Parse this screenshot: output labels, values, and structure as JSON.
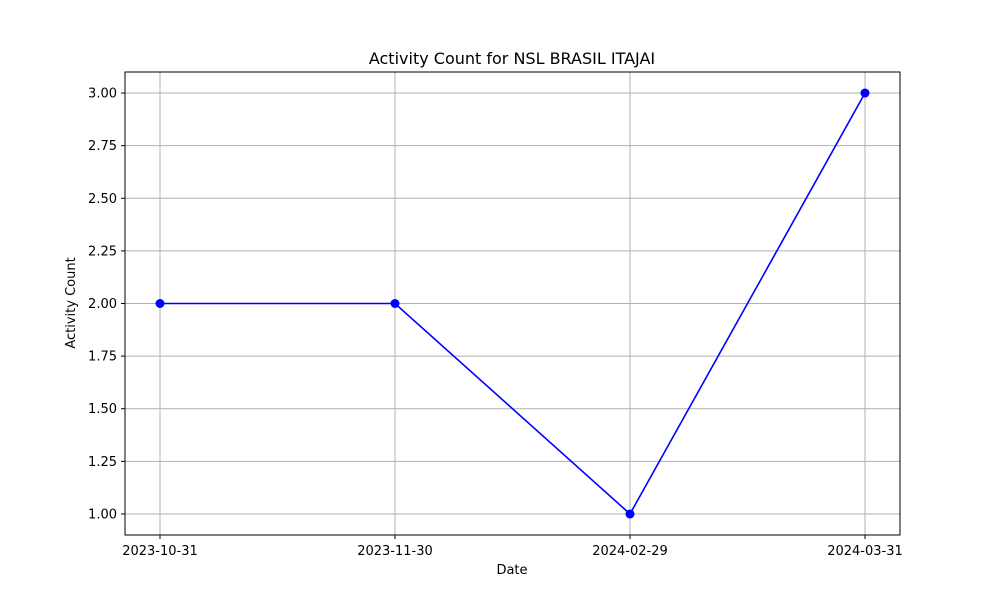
{
  "chart_data": {
    "type": "line",
    "title": "Activity Count for NSL BRASIL ITAJAI",
    "xlabel": "Date",
    "ylabel": "Activity Count",
    "categories": [
      "2023-10-31",
      "2023-11-30",
      "2024-02-29",
      "2024-03-31"
    ],
    "series": [
      {
        "values": [
          2,
          2,
          1,
          3
        ],
        "color": "#0000ff",
        "marker": "circle"
      }
    ],
    "ylim": [
      0.9,
      3.1
    ],
    "yticks": [
      "1.00",
      "1.25",
      "1.50",
      "1.75",
      "2.00",
      "2.25",
      "2.50",
      "2.75",
      "3.00"
    ],
    "grid": true
  }
}
